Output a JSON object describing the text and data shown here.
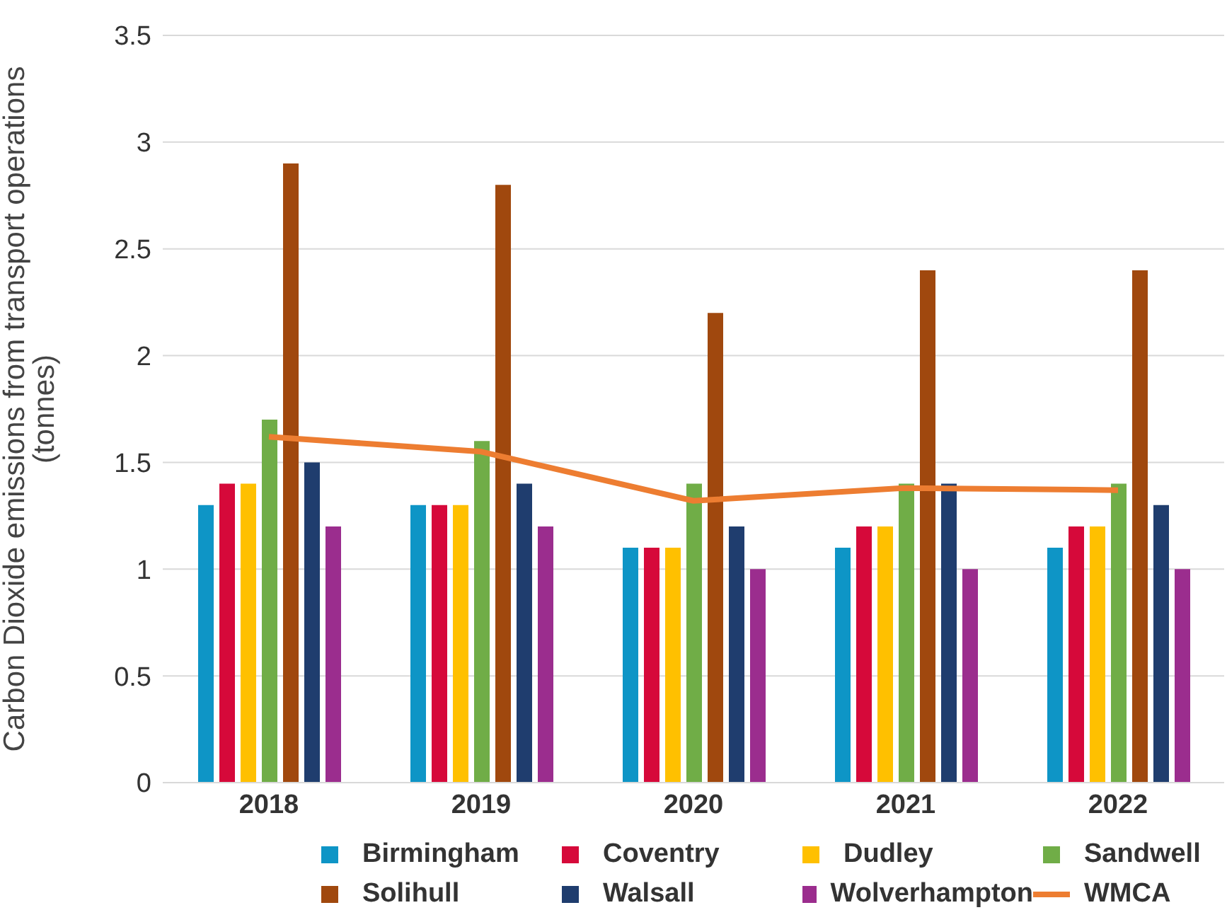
{
  "chart_data": {
    "type": "bar",
    "ylabel": "Carbon Dioxide emissions from transport operations (tonnes)",
    "categories": [
      "2018",
      "2019",
      "2020",
      "2021",
      "2022"
    ],
    "series": [
      {
        "name": "Birmingham",
        "color": "#0e95c6",
        "values": [
          1.3,
          1.3,
          1.1,
          1.1,
          1.1
        ]
      },
      {
        "name": "Coventry",
        "color": "#d6093a",
        "values": [
          1.4,
          1.3,
          1.1,
          1.2,
          1.2
        ]
      },
      {
        "name": "Dudley",
        "color": "#ffc000",
        "values": [
          1.4,
          1.3,
          1.1,
          1.2,
          1.2
        ]
      },
      {
        "name": "Sandwell",
        "color": "#70ad47",
        "values": [
          1.7,
          1.6,
          1.4,
          1.4,
          1.4
        ]
      },
      {
        "name": "Solihull",
        "color": "#a0480e",
        "values": [
          2.9,
          2.8,
          2.2,
          2.4,
          2.4
        ]
      },
      {
        "name": "Walsall",
        "color": "#1f3d6e",
        "values": [
          1.5,
          1.4,
          1.2,
          1.4,
          1.3
        ]
      },
      {
        "name": "Wolverhampton",
        "color": "#9b2d8e",
        "values": [
          1.2,
          1.2,
          1.0,
          1.0,
          1.0
        ]
      },
      {
        "name": "WMCA",
        "type": "line",
        "color": "#ed7d31",
        "values": [
          1.62,
          1.55,
          1.32,
          1.38,
          1.37
        ]
      }
    ],
    "ylim": [
      0,
      3.5
    ],
    "yticks": [
      0,
      0.5,
      1,
      1.5,
      2,
      2.5,
      3,
      3.5
    ],
    "grid": "y",
    "legend": "bottom",
    "marker": "none"
  }
}
